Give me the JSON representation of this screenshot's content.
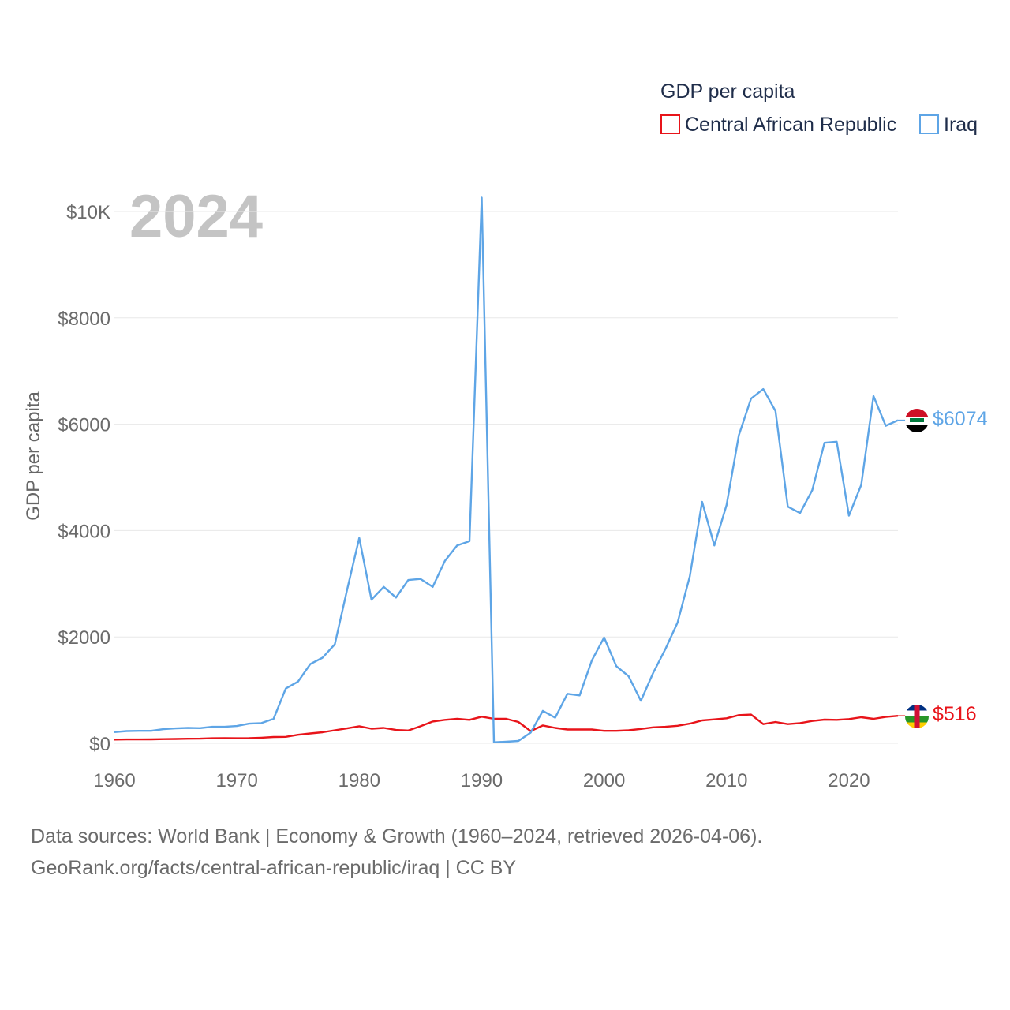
{
  "chart_data": {
    "type": "line",
    "title": "GDP per capita",
    "year_label": "2024",
    "ylabel": "GDP per capita",
    "xlabel": "",
    "xlim": [
      1960,
      2024
    ],
    "ylim": [
      0,
      10000
    ],
    "y_ticks": [
      0,
      2000,
      4000,
      6000,
      8000,
      10000
    ],
    "y_tick_labels": [
      "$0",
      "$2000",
      "$4000",
      "$6000",
      "$8000",
      "$10K"
    ],
    "x_ticks": [
      1960,
      1970,
      1980,
      1990,
      2000,
      2010,
      2020
    ],
    "x_tick_labels": [
      "1960",
      "1970",
      "1980",
      "1990",
      "2000",
      "2010",
      "2020"
    ],
    "grid": true,
    "legend_position": "top-right",
    "x": [
      1960,
      1961,
      1962,
      1963,
      1964,
      1965,
      1966,
      1967,
      1968,
      1969,
      1970,
      1971,
      1972,
      1973,
      1974,
      1975,
      1976,
      1977,
      1978,
      1979,
      1980,
      1981,
      1982,
      1983,
      1984,
      1985,
      1986,
      1987,
      1988,
      1989,
      1990,
      1991,
      1992,
      1993,
      1994,
      1995,
      1996,
      1997,
      1998,
      1999,
      2000,
      2001,
      2002,
      2003,
      2004,
      2005,
      2006,
      2007,
      2008,
      2009,
      2010,
      2011,
      2012,
      2013,
      2014,
      2015,
      2016,
      2017,
      2018,
      2019,
      2020,
      2021,
      2022,
      2023,
      2024
    ],
    "series": [
      {
        "name": "Central African Republic",
        "color": "#e8141a",
        "end_label": "$516",
        "flag_icon": "central-african-republic-flag-icon",
        "values": [
          70,
          72,
          73,
          74,
          78,
          82,
          86,
          88,
          95,
          96,
          95,
          97,
          105,
          118,
          122,
          160,
          185,
          208,
          245,
          280,
          320,
          275,
          290,
          250,
          240,
          320,
          410,
          440,
          460,
          440,
          500,
          460,
          460,
          400,
          230,
          335,
          290,
          260,
          260,
          260,
          235,
          235,
          245,
          270,
          300,
          310,
          330,
          370,
          430,
          450,
          470,
          530,
          540,
          360,
          400,
          360,
          380,
          420,
          445,
          440,
          455,
          490,
          460,
          495,
          516
        ]
      },
      {
        "name": "Iraq",
        "color": "#5ea5e6",
        "end_label": "$6074",
        "flag_icon": "iraq-flag-icon",
        "values": [
          210,
          230,
          235,
          235,
          265,
          280,
          290,
          285,
          310,
          310,
          325,
          370,
          380,
          460,
          1030,
          1160,
          1490,
          1610,
          1860,
          2880,
          3860,
          2700,
          2940,
          2740,
          3070,
          3090,
          2940,
          3430,
          3720,
          3800,
          10260,
          20,
          30,
          45,
          200,
          610,
          480,
          930,
          900,
          1560,
          1990,
          1450,
          1260,
          800,
          1320,
          1770,
          2270,
          3140,
          4540,
          3720,
          4480,
          5790,
          6480,
          6660,
          6250,
          4450,
          4330,
          4760,
          5650,
          5670,
          4280,
          4860,
          6530,
          5970,
          6074
        ]
      }
    ]
  },
  "sources": {
    "line1": "Data sources: World Bank | Economy & Growth (1960–2024, retrieved 2026-04-06).",
    "line2": "GeoRank.org/facts/central-african-republic/iraq | CC BY"
  }
}
